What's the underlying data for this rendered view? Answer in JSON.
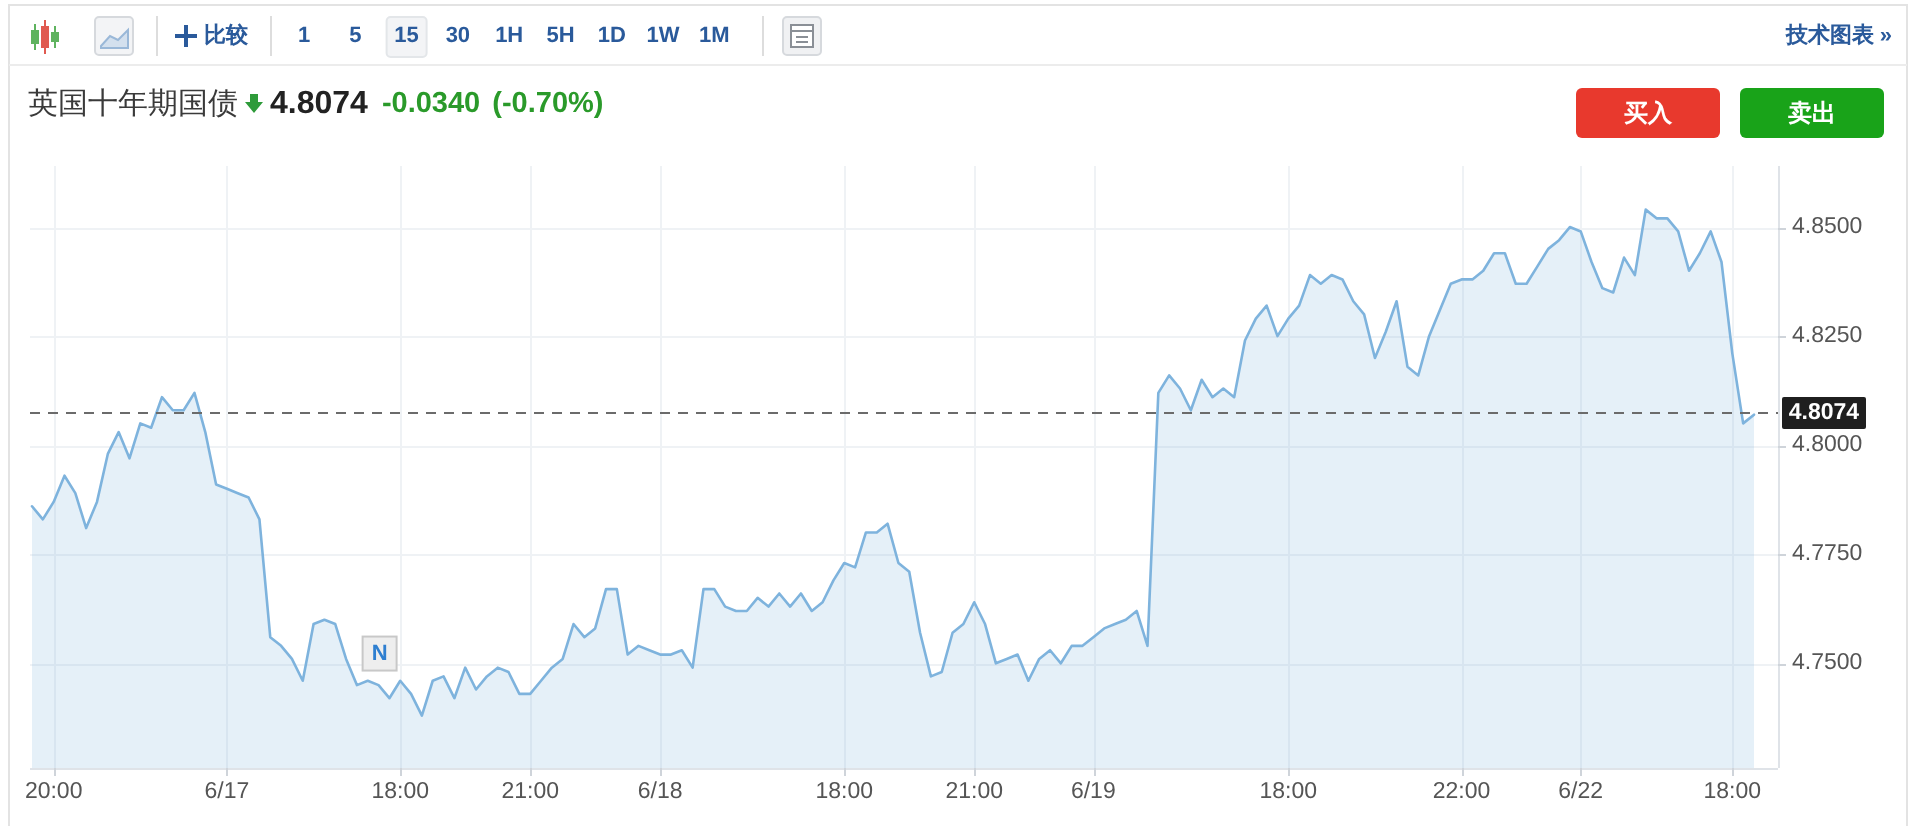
{
  "chart_data": {
    "type": "area",
    "title": "英国十年期国债",
    "subtitle": "4.8074",
    "annotations": [
      "-0.0340",
      "(-0.70%)",
      "比较",
      "1",
      "5",
      "15",
      "30",
      "1H",
      "5H",
      "1D",
      "1W",
      "1M",
      "技术图表 »",
      "买入",
      "卖出",
      "N"
    ],
    "categories": [
      null,
      null,
      "20:00",
      null,
      null,
      null,
      null,
      null,
      null,
      null,
      null,
      null,
      null,
      null,
      null,
      null,
      null,
      null,
      "6/17",
      null,
      null,
      null,
      null,
      null,
      null,
      null,
      null,
      null,
      null,
      null,
      null,
      null,
      null,
      null,
      "18:00",
      null,
      null,
      null,
      null,
      null,
      null,
      null,
      null,
      null,
      null,
      null,
      "21:00",
      null,
      null,
      null,
      null,
      null,
      null,
      null,
      null,
      null,
      null,
      null,
      "6/18",
      null,
      null,
      null,
      null,
      null,
      null,
      null,
      null,
      null,
      null,
      null,
      null,
      null,
      null,
      null,
      null,
      "18:00",
      null,
      null,
      null,
      null,
      null,
      null,
      null,
      null,
      null,
      null,
      null,
      "21:00",
      null,
      null,
      null,
      null,
      null,
      null,
      null,
      null,
      null,
      null,
      "6/19",
      null,
      null,
      null,
      null,
      null,
      null,
      null,
      null,
      null,
      null,
      null,
      null,
      null,
      null,
      null,
      null,
      null,
      "18:00",
      null,
      null,
      null,
      null,
      null,
      null,
      null,
      null,
      null,
      null,
      null,
      null,
      null,
      null,
      null,
      "22:00",
      null,
      null,
      null,
      null,
      null,
      null,
      null,
      null,
      null,
      null,
      "6/22",
      null,
      null,
      null,
      null,
      null,
      null,
      null,
      null,
      null,
      null,
      null,
      null,
      null,
      "18:00",
      null,
      null
    ],
    "series": [
      {
        "color": "#7eb3dd",
        "values": [
          4.786,
          4.783,
          4.787,
          4.793,
          4.789,
          4.781,
          4.787,
          4.798,
          4.803,
          4.797,
          4.805,
          4.804,
          4.811,
          4.808,
          4.808,
          4.812,
          4.803,
          4.791,
          4.79,
          4.789,
          4.788,
          4.783,
          4.756,
          4.754,
          4.751,
          4.746,
          4.759,
          4.76,
          4.759,
          4.751,
          4.745,
          4.746,
          4.745,
          4.742,
          4.746,
          4.743,
          4.738,
          4.746,
          4.747,
          4.742,
          4.749,
          4.744,
          4.747,
          4.749,
          4.748,
          4.743,
          4.743,
          4.746,
          4.749,
          4.751,
          4.759,
          4.756,
          4.758,
          4.767,
          4.767,
          4.752,
          4.754,
          4.753,
          4.752,
          4.752,
          4.753,
          4.749,
          4.767,
          4.767,
          4.763,
          4.762,
          4.762,
          4.765,
          4.763,
          4.766,
          4.763,
          4.766,
          4.762,
          4.764,
          4.769,
          4.773,
          4.772,
          4.78,
          4.78,
          4.782,
          4.773,
          4.771,
          4.757,
          4.747,
          4.748,
          4.757,
          4.759,
          4.764,
          4.759,
          4.75,
          4.751,
          4.752,
          4.746,
          4.751,
          4.753,
          4.75,
          4.754,
          4.754,
          4.756,
          4.758,
          4.759,
          4.76,
          4.762,
          4.754,
          4.812,
          4.816,
          4.813,
          4.808,
          4.815,
          4.811,
          4.813,
          4.811,
          4.824,
          4.829,
          4.832,
          4.825,
          4.829,
          4.832,
          4.839,
          4.837,
          4.839,
          4.838,
          4.833,
          4.83,
          4.82,
          4.826,
          4.833,
          4.818,
          4.816,
          4.825,
          4.831,
          4.837,
          4.838,
          4.838,
          4.84,
          4.844,
          4.844,
          4.837,
          4.837,
          4.841,
          4.845,
          4.847,
          4.85,
          4.849,
          4.842,
          4.836,
          4.835,
          4.843,
          4.839,
          4.854,
          4.852,
          4.852,
          4.849,
          4.84,
          4.844,
          4.849,
          4.842,
          4.821,
          4.805,
          4.807
        ]
      }
    ],
    "ylim": [
      4.726,
      4.864
    ],
    "yticks": [
      {
        "value": 4.75,
        "label": "4.7500"
      },
      {
        "value": 4.775,
        "label": "4.7750"
      },
      {
        "value": 4.8,
        "label": "4.8000"
      },
      {
        "value": 4.825,
        "label": "4.8250"
      },
      {
        "value": 4.85,
        "label": "4.8500"
      }
    ],
    "ref_lines": [
      {
        "axis": "y",
        "value": 4.8074,
        "label": "4.8074",
        "color": "#6b6b6b",
        "line_style": "dashed"
      }
    ],
    "grid": true
  }
}
